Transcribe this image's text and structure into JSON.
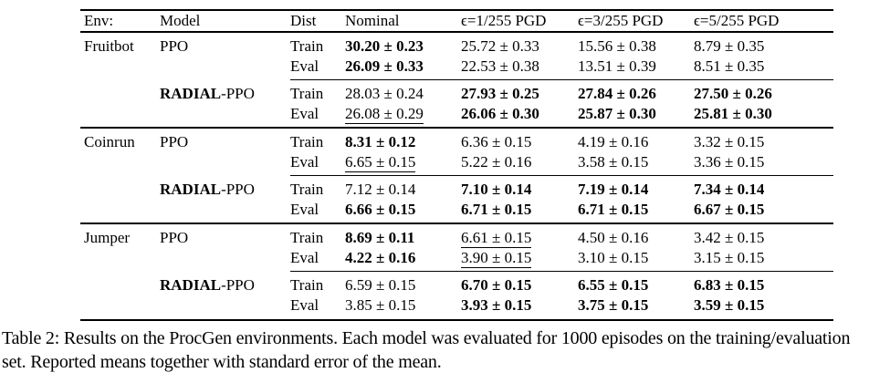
{
  "table": {
    "columns": [
      "Env:",
      "Model",
      "Dist",
      "Nominal",
      "ϵ=1/255 PGD",
      "ϵ=3/255 PGD",
      "ϵ=5/255 PGD"
    ],
    "sections": [
      {
        "env": "Fruitbot",
        "groups": [
          {
            "model_parts": [
              {
                "text": "PPO",
                "bold": false
              }
            ],
            "rows": [
              {
                "dist": "Train",
                "values": [
                  {
                    "text": "30.20 ± 0.23",
                    "bold": true
                  },
                  {
                    "text": "25.72 ± 0.33"
                  },
                  {
                    "text": "15.56 ± 0.38"
                  },
                  {
                    "text": "8.79 ± 0.35"
                  }
                ]
              },
              {
                "dist": "Eval",
                "values": [
                  {
                    "text": "26.09 ± 0.33",
                    "bold": true
                  },
                  {
                    "text": "22.53 ± 0.38"
                  },
                  {
                    "text": "13.51 ± 0.39"
                  },
                  {
                    "text": "8.51 ± 0.35"
                  }
                ]
              }
            ]
          },
          {
            "model_parts": [
              {
                "text": "RADIAL",
                "bold": true
              },
              {
                "text": "-PPO",
                "bold": false
              }
            ],
            "rows": [
              {
                "dist": "Train",
                "values": [
                  {
                    "text": "28.03 ± 0.24"
                  },
                  {
                    "text": "27.93 ± 0.25",
                    "bold": true
                  },
                  {
                    "text": "27.84 ± 0.26",
                    "bold": true
                  },
                  {
                    "text": "27.50 ± 0.26",
                    "bold": true
                  }
                ]
              },
              {
                "dist": "Eval",
                "values": [
                  {
                    "text": "26.08 ± 0.29",
                    "underline": true
                  },
                  {
                    "text": "26.06 ± 0.30",
                    "bold": true
                  },
                  {
                    "text": "25.87 ± 0.30",
                    "bold": true
                  },
                  {
                    "text": "25.81 ± 0.30",
                    "bold": true
                  }
                ]
              }
            ]
          }
        ]
      },
      {
        "env": "Coinrun",
        "groups": [
          {
            "model_parts": [
              {
                "text": "PPO",
                "bold": false
              }
            ],
            "rows": [
              {
                "dist": "Train",
                "values": [
                  {
                    "text": "8.31 ± 0.12",
                    "bold": true
                  },
                  {
                    "text": "6.36 ± 0.15"
                  },
                  {
                    "text": "4.19 ± 0.16"
                  },
                  {
                    "text": "3.32 ± 0.15"
                  }
                ]
              },
              {
                "dist": "Eval",
                "values": [
                  {
                    "text": "6.65 ± 0.15",
                    "underline": true
                  },
                  {
                    "text": "5.22 ± 0.16"
                  },
                  {
                    "text": "3.58 ± 0.15"
                  },
                  {
                    "text": "3.36 ± 0.15"
                  }
                ]
              }
            ]
          },
          {
            "model_parts": [
              {
                "text": "RADIAL",
                "bold": true
              },
              {
                "text": "-PPO",
                "bold": false
              }
            ],
            "rows": [
              {
                "dist": "Train",
                "values": [
                  {
                    "text": "7.12 ± 0.14"
                  },
                  {
                    "text": "7.10 ± 0.14",
                    "bold": true
                  },
                  {
                    "text": "7.19 ± 0.14",
                    "bold": true
                  },
                  {
                    "text": "7.34 ± 0.14",
                    "bold": true
                  }
                ]
              },
              {
                "dist": "Eval",
                "values": [
                  {
                    "text": "6.66 ± 0.15",
                    "bold": true
                  },
                  {
                    "text": "6.71 ± 0.15",
                    "bold": true
                  },
                  {
                    "text": "6.71 ± 0.15",
                    "bold": true
                  },
                  {
                    "text": "6.67 ± 0.15",
                    "bold": true
                  }
                ]
              }
            ]
          }
        ]
      },
      {
        "env": "Jumper",
        "groups": [
          {
            "model_parts": [
              {
                "text": "PPO",
                "bold": false
              }
            ],
            "rows": [
              {
                "dist": "Train",
                "values": [
                  {
                    "text": "8.69 ± 0.11",
                    "bold": true
                  },
                  {
                    "text": "6.61 ± 0.15",
                    "underline": true
                  },
                  {
                    "text": "4.50 ± 0.16"
                  },
                  {
                    "text": "3.42 ± 0.15"
                  }
                ]
              },
              {
                "dist": "Eval",
                "values": [
                  {
                    "text": "4.22 ± 0.16",
                    "bold": true
                  },
                  {
                    "text": "3.90 ± 0.15",
                    "underline": true
                  },
                  {
                    "text": "3.10 ± 0.15"
                  },
                  {
                    "text": "3.15 ± 0.15"
                  }
                ]
              }
            ]
          },
          {
            "model_parts": [
              {
                "text": "RADIAL",
                "bold": true
              },
              {
                "text": "-PPO",
                "bold": false
              }
            ],
            "rows": [
              {
                "dist": "Train",
                "values": [
                  {
                    "text": "6.59 ± 0.15"
                  },
                  {
                    "text": "6.70 ± 0.15",
                    "bold": true
                  },
                  {
                    "text": "6.55 ± 0.15",
                    "bold": true
                  },
                  {
                    "text": "6.83 ± 0.15",
                    "bold": true
                  }
                ]
              },
              {
                "dist": "Eval",
                "values": [
                  {
                    "text": "3.85 ± 0.15"
                  },
                  {
                    "text": "3.93 ± 0.15",
                    "bold": true
                  },
                  {
                    "text": "3.75 ± 0.15",
                    "bold": true
                  },
                  {
                    "text": "3.59 ± 0.15",
                    "bold": true
                  }
                ]
              }
            ]
          }
        ]
      }
    ]
  },
  "caption": "Table 2: Results on the ProcGen environments. Each model was evaluated for 1000 episodes on the training/evaluation set. Reported means together with standard error of the mean."
}
